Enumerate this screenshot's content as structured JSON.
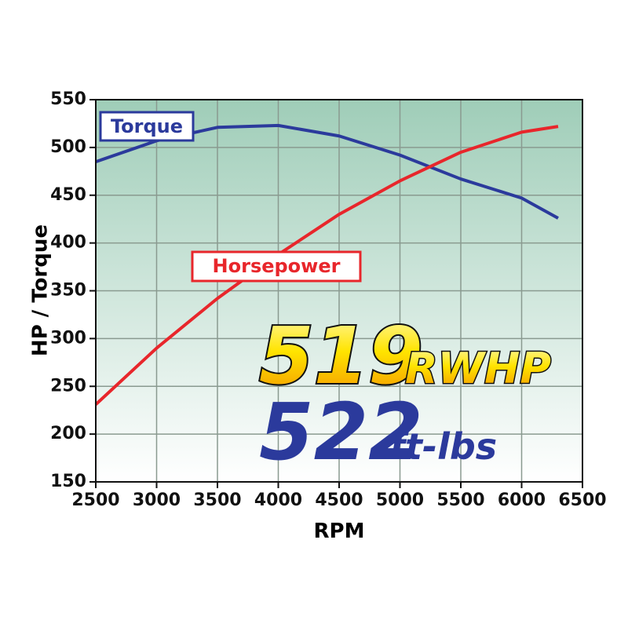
{
  "chart_data": {
    "type": "line",
    "x": [
      2500,
      3000,
      3500,
      4000,
      4500,
      5000,
      5500,
      6000,
      6300
    ],
    "series": [
      {
        "name": "Torque",
        "color": "#2b3a9c",
        "values": [
          485,
          507,
          521,
          523,
          512,
          492,
          467,
          447,
          426
        ]
      },
      {
        "name": "Horsepower",
        "color": "#e8262b",
        "values": [
          231,
          290,
          342,
          388,
          430,
          465,
          495,
          516,
          522
        ]
      }
    ],
    "xlim": [
      2500,
      6500
    ],
    "xticks": [
      2500,
      3000,
      3500,
      4000,
      4500,
      5000,
      5500,
      6000,
      6500
    ],
    "ylim": [
      150,
      550
    ],
    "yticks": [
      150,
      200,
      250,
      300,
      350,
      400,
      450,
      500,
      550
    ],
    "xlabel": "RPM",
    "ylabel": "HP / Torque",
    "grid": true,
    "annotations": [
      "519",
      "RWHP",
      "522",
      "ft-lbs"
    ]
  }
}
